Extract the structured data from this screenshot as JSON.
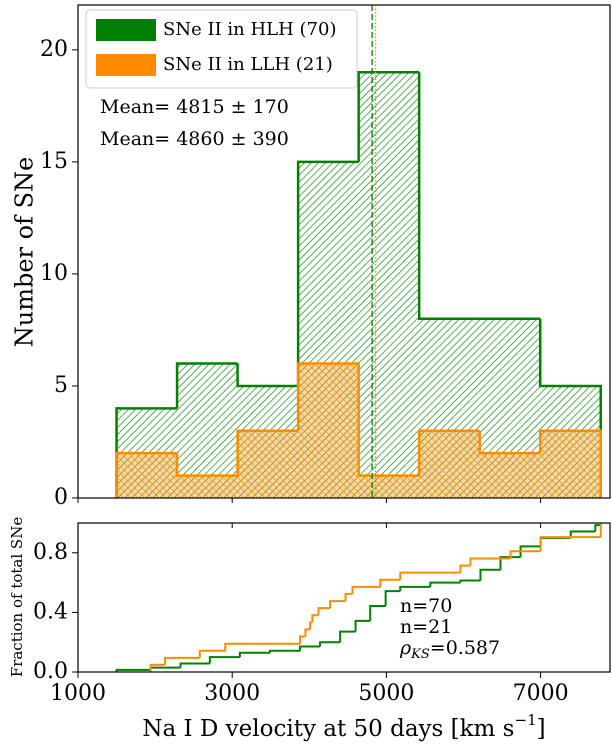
{
  "chart_data": [
    {
      "type": "histogram",
      "bins": [
        1500,
        2285,
        3070,
        3855,
        4640,
        5425,
        6210,
        6995,
        7780
      ],
      "series": [
        {
          "name": "SNe II in HLH (70)",
          "color": "#008000",
          "values": [
            4,
            6,
            5,
            15,
            19,
            8,
            8,
            5
          ]
        },
        {
          "name": "SNe II in LLH (21)",
          "color": "#ff8c00",
          "values": [
            2,
            1,
            3,
            6,
            1,
            3,
            2,
            3
          ]
        }
      ],
      "ylabel": "Number of SNe",
      "xlim": [
        1000,
        7900
      ],
      "ylim": [
        0,
        22
      ],
      "yticks": [
        0,
        5,
        10,
        15,
        20
      ],
      "legend": "upper left",
      "hatch": true,
      "mean_lines": [
        {
          "value": 4815,
          "color": "#008000",
          "style": "dashed"
        },
        {
          "value": 4860,
          "color": "#ff8c00",
          "style": "dotted"
        }
      ],
      "annotations": [
        {
          "text": "Mean= 4815 ± 170",
          "color": "#008000"
        },
        {
          "text": "Mean= 4860 ± 390",
          "color": "#ff4500"
        }
      ]
    },
    {
      "type": "step",
      "series": [
        {
          "color": "#008000",
          "x": [
            1500,
            1940,
            2330,
            2710,
            3100,
            3490,
            3880,
            4140,
            4400,
            4600,
            4790,
            4990,
            5180,
            5570,
            5960,
            6220,
            6480,
            6740,
            7000,
            7390,
            7710,
            7780
          ],
          "values": [
            0.014,
            0.029,
            0.057,
            0.1,
            0.129,
            0.143,
            0.171,
            0.2,
            0.271,
            0.343,
            0.443,
            0.543,
            0.571,
            0.6,
            0.614,
            0.686,
            0.771,
            0.843,
            0.9,
            0.943,
            0.986,
            1.0
          ]
        },
        {
          "color": "#ff8c00",
          "x": [
            1940,
            2130,
            2580,
            2910,
            3880,
            3950,
            4010,
            4040,
            4120,
            4270,
            4470,
            4560,
            4920,
            5180,
            5960,
            6090,
            6610,
            7000,
            7780
          ],
          "values": [
            0.048,
            0.095,
            0.143,
            0.19,
            0.238,
            0.286,
            0.333,
            0.381,
            0.429,
            0.476,
            0.524,
            0.571,
            0.619,
            0.667,
            0.714,
            0.762,
            0.81,
            0.905,
            1.0
          ]
        }
      ],
      "ylabel": "Fraction of total SNe",
      "xlabel": {
        "text": "Na I D velocity at 50 days [km s",
        "superscript": "−1",
        "end": "]"
      },
      "xlim": [
        1000,
        7900
      ],
      "xticks": [
        1000,
        3000,
        5000,
        7000
      ],
      "ylim": [
        0,
        1.0
      ],
      "yticks": [
        {
          "value": 0,
          "label": "0.0"
        },
        {
          "value": 0.4,
          "label": "0.4"
        },
        {
          "value": 0.8,
          "label": "0.8"
        }
      ],
      "annotations": [
        {
          "text": "n=70",
          "color": "#008000"
        },
        {
          "text": "n=21",
          "color": "#ff4500"
        },
        {
          "symbol": "ρ",
          "subscript": "KS",
          "text": "=0.587",
          "color": "#000000"
        }
      ]
    }
  ]
}
